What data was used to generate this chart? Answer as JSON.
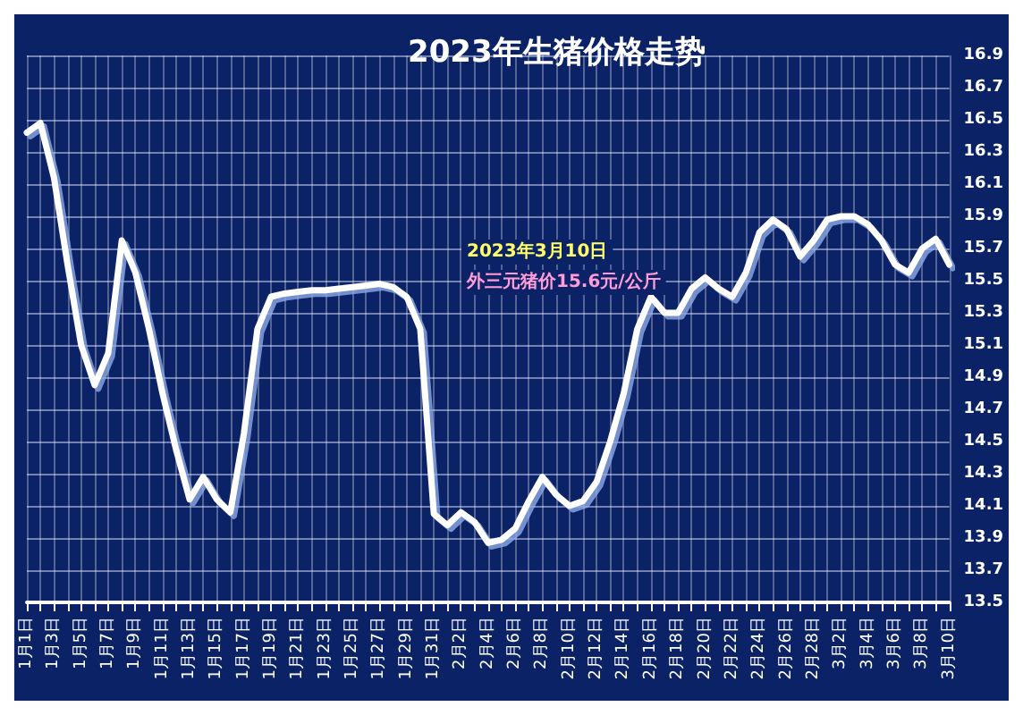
{
  "chart_data": {
    "type": "line",
    "title": "2023年生猪价格走势",
    "annotations": [
      "2023年3月10日",
      "外三元猪价15.6元/公斤"
    ],
    "categories": [
      "1月1日",
      null,
      "1月3日",
      null,
      "1月5日",
      null,
      "1月7日",
      null,
      "1月9日",
      null,
      "1月11日",
      null,
      "1月13日",
      null,
      "1月15日",
      null,
      "1月17日",
      null,
      "1月19日",
      null,
      "1月21日",
      null,
      "1月23日",
      null,
      "1月25日",
      null,
      "1月27日",
      null,
      "1月29日",
      null,
      "1月31日",
      null,
      "2月2日",
      null,
      "2月4日",
      null,
      "2月6日",
      null,
      "2月8日",
      null,
      "2月10日",
      null,
      "2月12日",
      null,
      "2月14日",
      null,
      "2月16日",
      null,
      "2月18日",
      null,
      "2月20日",
      null,
      "2月22日",
      null,
      "2月24日",
      null,
      "2月26日",
      null,
      "2月28日",
      null,
      "3月2日",
      null,
      "3月4日",
      null,
      "3月6日",
      null,
      "3月8日",
      null,
      "3月10日"
    ],
    "series": [
      {
        "color": "#ffffff",
        "values": [
          16.42,
          16.48,
          16.14,
          15.6,
          15.1,
          14.85,
          15.05,
          15.75,
          15.55,
          15.2,
          14.8,
          14.45,
          14.14,
          14.28,
          14.14,
          14.06,
          14.55,
          15.2,
          15.4,
          15.42,
          15.43,
          15.44,
          15.44,
          15.45,
          15.46,
          15.47,
          15.48,
          15.46,
          15.4,
          15.2,
          14.05,
          13.98,
          14.06,
          14.0,
          13.87,
          13.89,
          13.96,
          14.13,
          14.28,
          14.17,
          14.1,
          14.13,
          14.25,
          14.5,
          14.8,
          15.2,
          15.4,
          15.3,
          15.3,
          15.45,
          15.52,
          15.45,
          15.4,
          15.55,
          15.8,
          15.88,
          15.82,
          15.65,
          15.75,
          15.88,
          15.9,
          15.9,
          15.85,
          15.75,
          15.6,
          15.55,
          15.7,
          15.76,
          15.6
        ]
      }
    ],
    "ylim": [
      13.5,
      16.9
    ],
    "yticks": [
      13.5,
      13.7,
      13.9,
      14.1,
      14.3,
      14.5,
      14.7,
      14.9,
      15.1,
      15.3,
      15.5,
      15.7,
      15.9,
      16.1,
      16.3,
      16.5,
      16.7,
      16.9
    ],
    "grid": true,
    "marker": "none",
    "line_style": "solid"
  }
}
